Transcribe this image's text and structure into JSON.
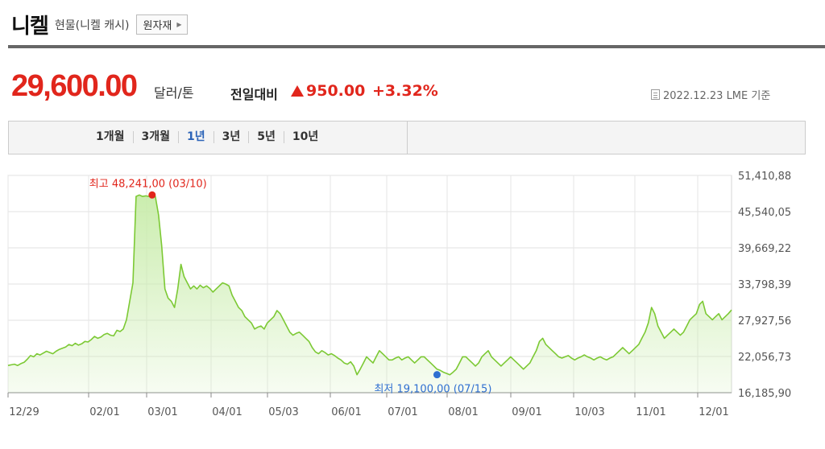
{
  "header": {
    "title": "니켈",
    "subtitle": "현물(니켈 캐시)",
    "tag_button": "원자재"
  },
  "quote": {
    "price": "29,600.00",
    "unit": "달러/톤",
    "diff_label": "전일대비",
    "diff_value": "950.00",
    "diff_percent": "+3.32%",
    "as_of": "2022.12.23 LME 기준",
    "up_color": "#e1261c"
  },
  "period_tabs": [
    {
      "label": "1개월",
      "selected": false
    },
    {
      "label": "3개월",
      "selected": false
    },
    {
      "label": "1년",
      "selected": true
    },
    {
      "label": "3년",
      "selected": false
    },
    {
      "label": "5년",
      "selected": false
    },
    {
      "label": "10년",
      "selected": false
    }
  ],
  "chart_data": {
    "type": "area",
    "title": "",
    "xlabel": "",
    "ylabel": "",
    "ylim": [
      16185.9,
      51410.88
    ],
    "y_ticks": [
      51410.88,
      45540.05,
      39669.22,
      33798.39,
      27927.56,
      22056.73,
      16185.9
    ],
    "y_tick_labels": [
      "51,410,88",
      "45,540,05",
      "39,669,22",
      "33,798,39",
      "27,927,56",
      "22,056,73",
      "16,185,90"
    ],
    "x_tick_labels": [
      "12/29",
      "02/01",
      "03/01",
      "04/01",
      "05/03",
      "06/01",
      "07/01",
      "08/01",
      "09/01",
      "10/03",
      "11/01",
      "12/01"
    ],
    "grid": true,
    "colors": {
      "line": "#7cc934",
      "fill": "#c8ecaa",
      "max": "#e1261c",
      "min": "#2f6fd1"
    },
    "max_annotation": {
      "label": "최고 48,241,00 (03/10)",
      "value": 48241,
      "index": 45
    },
    "min_annotation": {
      "label": "최저 19,100,00 (07/15)",
      "value": 19100,
      "index": 134
    },
    "series": [
      {
        "values": [
          20600,
          20700,
          20800,
          20600,
          20900,
          21100,
          21600,
          22200,
          22000,
          22500,
          22300,
          22600,
          22900,
          22700,
          22500,
          22900,
          23200,
          23400,
          23600,
          24000,
          23800,
          24200,
          23900,
          24100,
          24500,
          24400,
          24800,
          25300,
          25000,
          25200,
          25600,
          25800,
          25500,
          25400,
          26300,
          26100,
          26500,
          28000,
          31000,
          34000,
          48000,
          48241,
          48000,
          48100,
          48000,
          48241,
          48000,
          45000,
          40000,
          33000,
          31500,
          31000,
          30000,
          33000,
          37000,
          35000,
          34000,
          33000,
          33500,
          33000,
          33600,
          33200,
          33500,
          33100,
          32500,
          33000,
          33500,
          34000,
          33800,
          33500,
          32000,
          31000,
          30000,
          29500,
          28500,
          28000,
          27500,
          26500,
          26800,
          27000,
          26500,
          27500,
          28000,
          28500,
          29500,
          29000,
          28000,
          27000,
          26000,
          25500,
          25800,
          26000,
          25500,
          25000,
          24500,
          23500,
          22800,
          22500,
          23000,
          22700,
          22300,
          22500,
          22200,
          21800,
          21500,
          21000,
          20800,
          21200,
          20500,
          19100,
          20000,
          21000,
          22000,
          21500,
          21000,
          22000,
          23000,
          22500,
          22000,
          21500,
          21500,
          21800,
          22000,
          21500,
          21800,
          22000,
          21500,
          21000,
          21500,
          22000,
          22000,
          21500,
          21000,
          20500,
          20000,
          19800,
          19500,
          19300,
          19100,
          19500,
          20000,
          21000,
          22000,
          22000,
          21500,
          21000,
          20500,
          21000,
          22000,
          22500,
          23000,
          22000,
          21500,
          21000,
          20500,
          21000,
          21500,
          22000,
          21500,
          21000,
          20500,
          20000,
          20500,
          21000,
          22000,
          23000,
          24500,
          25000,
          24000,
          23500,
          23000,
          22500,
          22000,
          21800,
          22000,
          22200,
          21800,
          21500,
          21800,
          22000,
          22300,
          22000,
          21800,
          21500,
          21800,
          22000,
          21700,
          21500,
          21800,
          22000,
          22500,
          23000,
          23500,
          23000,
          22500,
          23000,
          23500,
          24000,
          25000,
          26000,
          27500,
          30000,
          29000,
          27000,
          26000,
          25000,
          25500,
          26000,
          26500,
          26000,
          25500,
          26000,
          27000,
          28000,
          28500,
          29000,
          30500,
          31000,
          29000,
          28500,
          28000,
          28500,
          29000,
          28000,
          28500,
          29000,
          29600
        ]
      }
    ]
  }
}
